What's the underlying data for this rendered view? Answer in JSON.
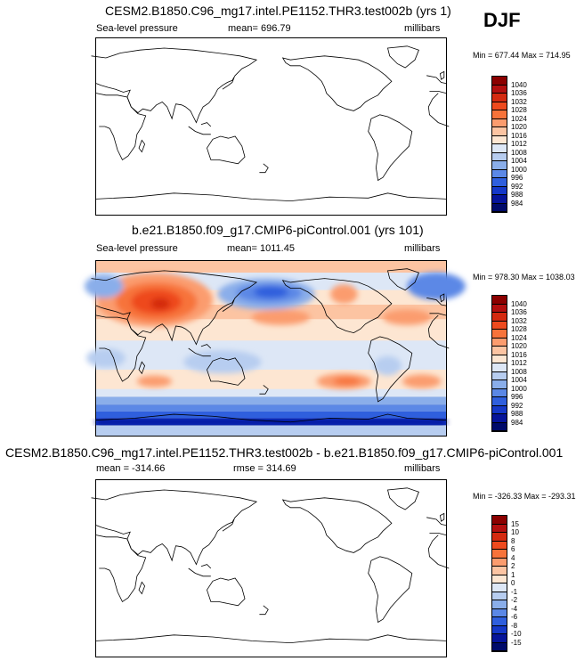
{
  "season": "DJF",
  "panels": [
    {
      "title": "CESM2.B1850.C96_mg17.intel.PE1152.THR3.test002b (yrs 1)",
      "left_label": "Sea-level pressure",
      "center_label": "mean= 696.79",
      "units": "millibars",
      "minmax": "Min = 677.44 Max = 714.95",
      "levels": [
        "1040",
        "1036",
        "1032",
        "1028",
        "1024",
        "1020",
        "1016",
        "1012",
        "1008",
        "1004",
        "1000",
        "996",
        "992",
        "988",
        "984"
      ],
      "fill": "none"
    },
    {
      "title": "b.e21.B1850.f09_g17.CMIP6-piControl.001 (yrs 101)",
      "left_label": "Sea-level pressure",
      "center_label": "mean= 1011.45",
      "units": "millibars",
      "minmax": "Min = 978.30 Max = 1038.03",
      "levels": [
        "1040",
        "1036",
        "1032",
        "1028",
        "1024",
        "1020",
        "1016",
        "1012",
        "1008",
        "1004",
        "1000",
        "996",
        "992",
        "988",
        "984"
      ],
      "fill": "field"
    },
    {
      "title": "CESM2.B1850.C96_mg17.intel.PE1152.THR3.test002b - b.e21.B1850.f09_g17.CMIP6-piControl.001",
      "left_label": "mean = -314.66",
      "center_label": "rmse = 314.69",
      "units": "millibars",
      "minmax": "Min = -326.33 Max = -293.31",
      "levels": [
        "15",
        "10",
        "8",
        "6",
        "4",
        "2",
        "1",
        "0",
        "-1",
        "-2",
        "-4",
        "-6",
        "-8",
        "-10",
        "-15"
      ],
      "fill": "none"
    }
  ],
  "colorbar_colors": [
    "#8b0000",
    "#b30f0f",
    "#d42a10",
    "#ee4a1e",
    "#f7733a",
    "#fb9c6e",
    "#fcc4a2",
    "#fde6d2",
    "#dde7f6",
    "#b7cdf0",
    "#8aaeea",
    "#5b88e6",
    "#2f5fdd",
    "#1538c8",
    "#06149a",
    "#000a6a"
  ]
}
